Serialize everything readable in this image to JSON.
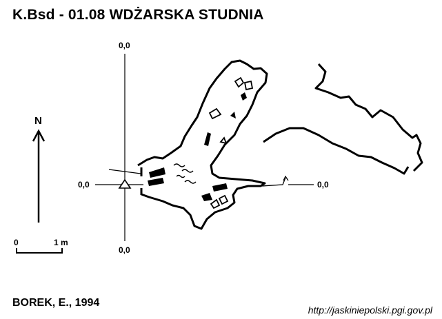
{
  "map": {
    "title": "K.Bsd - 01.08  WDŻARSKA STUDNIA",
    "author": "BOREK, E., 1994",
    "source_url": "http://jaskiniepolski.pgi.gov.pl",
    "north_label": "N",
    "scale_bar": {
      "start_label": "0",
      "end_label": "1 m"
    },
    "grid_labels": {
      "top": "0,0",
      "bottom": "0,0",
      "left": "0,0",
      "right": "0,0"
    },
    "colors": {
      "ink": "#000000",
      "background": "#ffffff"
    }
  }
}
